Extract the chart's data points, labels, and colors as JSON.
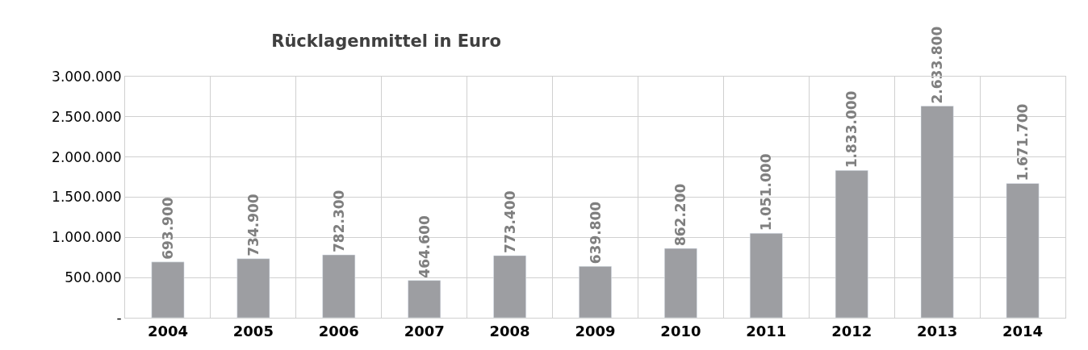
{
  "chart_data": {
    "type": "bar",
    "title": "Rücklagenmittel in Euro",
    "categories": [
      "2004",
      "2005",
      "2006",
      "2007",
      "2008",
      "2009",
      "2010",
      "2011",
      "2012",
      "2013",
      "2014"
    ],
    "values": [
      693900,
      734900,
      782300,
      464600,
      773400,
      639800,
      862200,
      1051000,
      1833000,
      2633800,
      1671700
    ],
    "value_labels": [
      "693.900",
      "734.900",
      "782.300",
      "464.600",
      "773.400",
      "639.800",
      "862.200",
      "1.051.000",
      "1.833.000",
      "2.633.800",
      "1.671.700"
    ],
    "color": "#9d9ea2",
    "ylim": [
      0,
      3000000
    ],
    "yticks": [
      {
        "value": 0,
        "label": "-"
      },
      {
        "value": 500000,
        "label": "500.000"
      },
      {
        "value": 1000000,
        "label": "1.000.000"
      },
      {
        "value": 1500000,
        "label": "1.500.000"
      },
      {
        "value": 2000000,
        "label": "2.000.000"
      },
      {
        "value": 2500000,
        "label": "2.500.000"
      },
      {
        "value": 3000000,
        "label": "3.000.000"
      }
    ],
    "grid": true
  }
}
